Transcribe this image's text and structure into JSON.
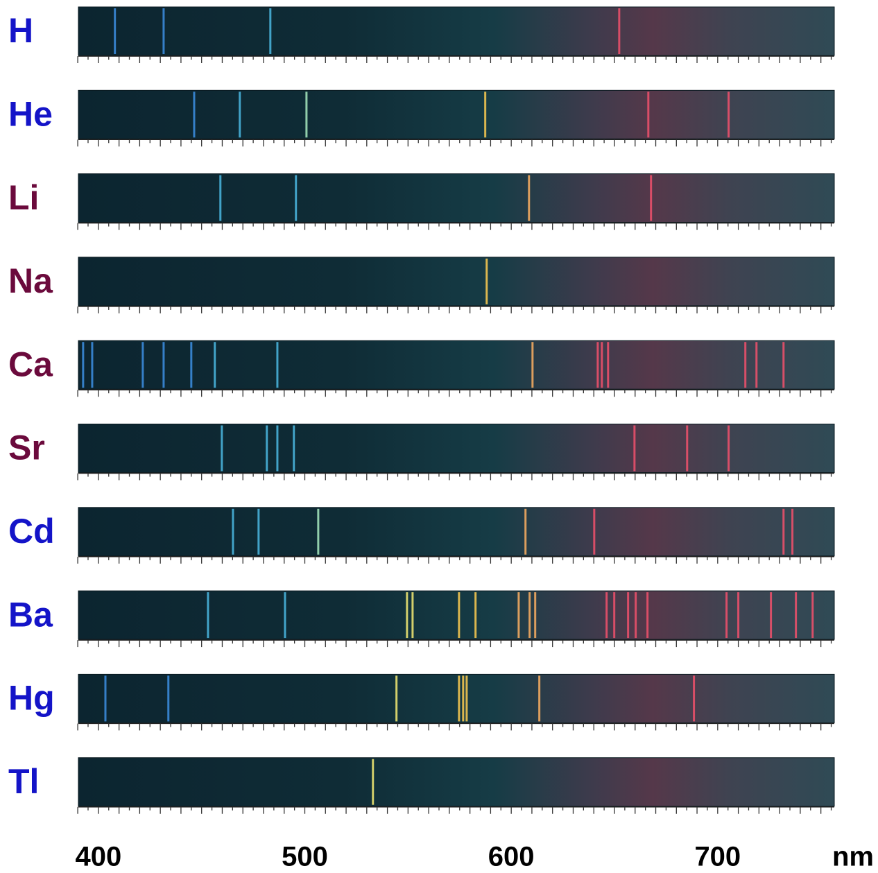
{
  "chart_data": {
    "type": "spectra",
    "x_label": "nm",
    "xlim": [
      390.3,
      756.5
    ],
    "xticks": [
      400,
      500,
      600,
      700
    ],
    "xticks_minor": [
      390,
      395,
      400,
      405,
      410,
      415,
      420,
      425,
      430,
      435,
      440,
      445,
      450,
      455,
      460,
      465,
      470,
      475,
      480,
      485,
      490,
      495,
      500,
      505,
      510,
      515,
      520,
      525,
      530,
      535,
      540,
      545,
      550,
      555,
      560,
      565,
      570,
      575,
      580,
      585,
      590,
      595,
      600,
      605,
      610,
      615,
      620,
      625,
      630,
      635,
      640,
      645,
      650,
      655,
      660,
      665,
      670,
      675,
      680,
      685,
      690,
      695,
      700,
      705,
      710,
      715,
      720,
      725,
      730,
      735,
      740,
      745,
      750,
      755
    ],
    "series": [
      {
        "name": "H",
        "color": "#1414c8",
        "values": [
          408,
          431.6,
          483.3,
          652.3
        ]
      },
      {
        "name": "He",
        "color": "#1414c8",
        "values": [
          446.4,
          468.5,
          500.8,
          587.4,
          666.4,
          705.3
        ]
      },
      {
        "name": "Li",
        "color": "#6b0a3c",
        "values": [
          459.1,
          495.7,
          608.6,
          667.7
        ]
      },
      {
        "name": "Na",
        "color": "#6b0a3c",
        "values": [
          588.1
        ]
      },
      {
        "name": "Ca",
        "color": "#6b0a3c",
        "values": [
          392.6,
          397,
          421.5,
          431.6,
          445,
          456.4,
          486.7,
          610.3,
          641.9,
          643.9,
          646.9,
          713.4,
          718.8,
          731.9
        ]
      },
      {
        "name": "Sr",
        "color": "#6b0a3c",
        "values": [
          459.8,
          481.6,
          486.7,
          494.7,
          659.7,
          685.2,
          705.3
        ]
      },
      {
        "name": "Cd",
        "color": "#1414c8",
        "values": [
          465.2,
          477.6,
          506.5,
          606.9,
          640.2,
          731.9,
          736.2
        ]
      },
      {
        "name": "Ba",
        "color": "#1414c8",
        "values": [
          453.1,
          490.4,
          549.5,
          552.2,
          574.7,
          582.7,
          603.6,
          608.9,
          611.6,
          646.2,
          649.9,
          656.6,
          660.3,
          666,
          704.3,
          710,
          725.8,
          737.9,
          746
        ]
      },
      {
        "name": "Hg",
        "color": "#1414c8",
        "values": [
          403.4,
          433.9,
          544.4,
          574.7,
          576.7,
          578.4,
          613.6,
          688.5
        ]
      },
      {
        "name": "Tl",
        "color": "#1414c8",
        "values": [
          533
        ]
      }
    ]
  }
}
